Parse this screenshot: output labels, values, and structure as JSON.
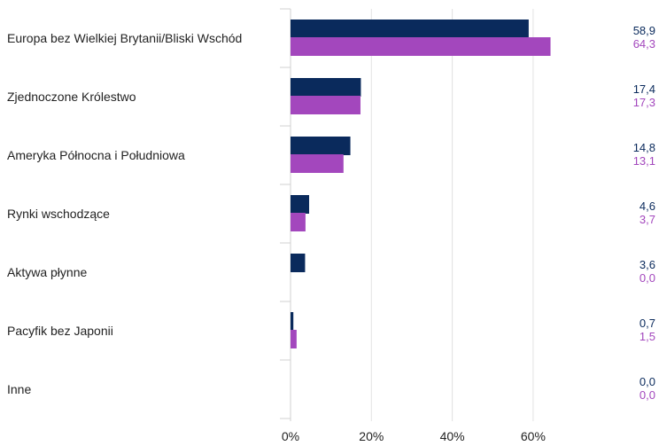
{
  "chart_data": {
    "type": "bar",
    "orientation": "horizontal",
    "categories": [
      "Europa bez Wielkiej Brytanii/Bliski Wschód",
      "Zjednoczone Królestwo",
      "Ameryka Północna i Południowa",
      "Rynki wschodzące",
      "Aktywa płynne",
      "Pacyfik bez Japonii",
      "Inne"
    ],
    "series": [
      {
        "values": [
          58.9,
          17.4,
          14.8,
          4.6,
          3.6,
          0.7,
          0.0
        ],
        "labels": [
          "58,9",
          "17,4",
          "14,8",
          "4,6",
          "3,6",
          "0,7",
          "0,0"
        ],
        "color": "#0a2a5c"
      },
      {
        "values": [
          64.3,
          17.3,
          13.1,
          3.7,
          0.0,
          1.5,
          0.0
        ],
        "labels": [
          "64,3",
          "17,3",
          "13,1",
          "3,7",
          "0,0",
          "1,5",
          "0,0"
        ],
        "color": "#a347bd"
      }
    ],
    "x_ticks": [
      "0%",
      "20%",
      "40%",
      "60%"
    ],
    "x_tick_values": [
      0,
      20,
      40,
      60
    ],
    "xlim": [
      0,
      77
    ],
    "title": "",
    "xlabel": "",
    "ylabel": "",
    "grid": true,
    "legend": false
  }
}
